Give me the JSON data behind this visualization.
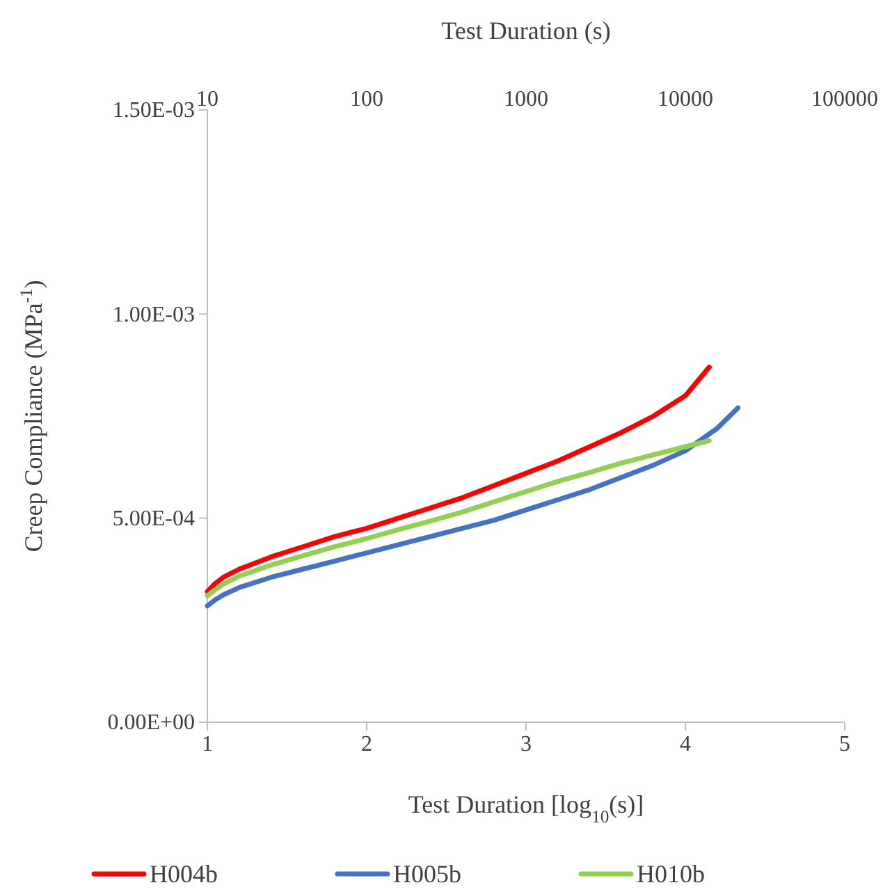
{
  "chart_data": {
    "type": "line",
    "xlabel": "Test Duration [log$_{10}$(s)]",
    "x2label": "Test Duration (s)",
    "ylabel": "Creep Compliance (MPa$^{-1}$)",
    "xlim": [
      1,
      5
    ],
    "xticks": [
      1,
      2,
      3,
      4,
      5
    ],
    "x2lim": [
      10,
      100000
    ],
    "x2ticks": [
      10,
      100,
      1000,
      10000,
      100000
    ],
    "log": "x2",
    "ylim": [
      0,
      0.0015
    ],
    "yticks": [
      {
        "value": 0,
        "label": "0.00E+00"
      },
      {
        "value": 0.0005,
        "label": "5.00E-04"
      },
      {
        "value": 0.001,
        "label": "1.00E-03"
      },
      {
        "value": 0.0015,
        "label": "1.50E-03"
      }
    ],
    "grid": false,
    "legend": "bottom",
    "line_style": "solid",
    "marker": "none",
    "series": [
      {
        "name": "H004b",
        "color": "#ff0000",
        "x": [
          1,
          1.05,
          1.1,
          1.2,
          1.4,
          1.6,
          1.8,
          2,
          2.2,
          2.4,
          2.6,
          2.8,
          3,
          3.2,
          3.4,
          3.6,
          3.8,
          4,
          4.15
        ],
        "values": [
          0.00032,
          0.00034,
          0.000355,
          0.000375,
          0.000405,
          0.00043,
          0.000455,
          0.000475,
          0.0005,
          0.000525,
          0.00055,
          0.00058,
          0.00061,
          0.00064,
          0.000675,
          0.00071,
          0.00075,
          0.0008,
          0.00087
        ]
      },
      {
        "name": "H005b",
        "color": "#4472c4",
        "x": [
          1,
          1.05,
          1.1,
          1.2,
          1.4,
          1.6,
          1.8,
          2,
          2.2,
          2.4,
          2.6,
          2.8,
          3,
          3.2,
          3.4,
          3.6,
          3.8,
          4,
          4.2,
          4.33
        ],
        "values": [
          0.000285,
          0.0003,
          0.000312,
          0.00033,
          0.000355,
          0.000375,
          0.000395,
          0.000415,
          0.000435,
          0.000455,
          0.000475,
          0.000495,
          0.00052,
          0.000545,
          0.00057,
          0.0006,
          0.00063,
          0.000665,
          0.00072,
          0.00077
        ]
      },
      {
        "name": "H010b",
        "color": "#92d050",
        "x": [
          1,
          1.05,
          1.1,
          1.2,
          1.4,
          1.6,
          1.8,
          2,
          2.2,
          2.4,
          2.6,
          2.8,
          3,
          3.2,
          3.4,
          3.6,
          3.8,
          4,
          4.15
        ],
        "values": [
          0.00031,
          0.000325,
          0.000338,
          0.000358,
          0.000385,
          0.000408,
          0.00043,
          0.00045,
          0.000472,
          0.000493,
          0.000515,
          0.00054,
          0.000565,
          0.00059,
          0.000612,
          0.000635,
          0.000655,
          0.000675,
          0.00069
        ]
      }
    ]
  }
}
